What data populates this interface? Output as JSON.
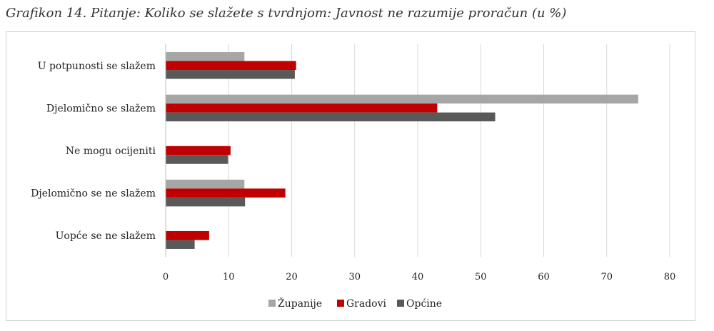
{
  "title": "Grafikon 14. Pitanje: Koliko se slažete s tvrdnjom: Javnost ne razumije proračun (u %)",
  "chart_data": {
    "type": "bar",
    "orientation": "horizontal",
    "categories": [
      "U potpunosti se slažem",
      "Djelomično se slažem",
      "Ne mogu ocijeniti",
      "Djelomično se ne slažem",
      "Uopće se ne slažem"
    ],
    "series": [
      {
        "name": "Županije",
        "color": "#a6a6a6",
        "values": [
          12.5,
          75,
          0,
          12.5,
          0
        ]
      },
      {
        "name": "Gradovi",
        "color": "#c00000",
        "values": [
          20.7,
          43.1,
          10.3,
          19,
          6.9
        ]
      },
      {
        "name": "Općine",
        "color": "#595959",
        "values": [
          20.5,
          52.3,
          9.9,
          12.6,
          4.6
        ]
      }
    ],
    "xlim": [
      0,
      80
    ],
    "xticks": [
      0,
      10,
      20,
      30,
      40,
      50,
      60,
      70,
      80
    ],
    "grid": true,
    "legend": "bottom"
  }
}
